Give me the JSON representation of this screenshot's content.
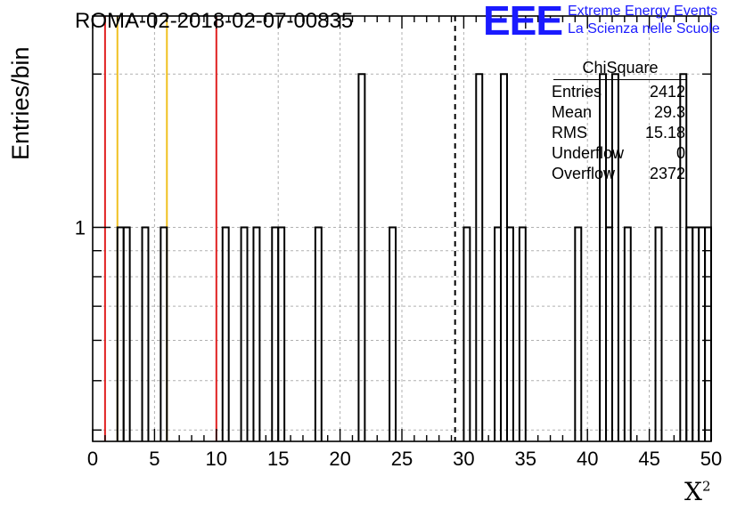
{
  "chart_data": {
    "type": "histogram",
    "title": "ROMA-02-2018-02-07-00835",
    "xlabel": "X",
    "xlabel_superscript": "2",
    "ylabel": "Entries/bin",
    "xlim": [
      0,
      50
    ],
    "ylim": [
      0.38,
      2.6
    ],
    "y_scale": "log",
    "grid": true,
    "x_ticks": [
      "0",
      "5",
      "10",
      "15",
      "20",
      "25",
      "30",
      "35",
      "40",
      "45",
      "50"
    ],
    "y_tick_label": "1",
    "bin_width": 0.5,
    "bins": [
      {
        "x": 2.0,
        "y": 1
      },
      {
        "x": 2.5,
        "y": 1
      },
      {
        "x": 4.0,
        "y": 1
      },
      {
        "x": 5.5,
        "y": 1
      },
      {
        "x": 10.5,
        "y": 1
      },
      {
        "x": 12.0,
        "y": 1
      },
      {
        "x": 13.0,
        "y": 1
      },
      {
        "x": 14.5,
        "y": 1
      },
      {
        "x": 15.0,
        "y": 1
      },
      {
        "x": 18.0,
        "y": 1
      },
      {
        "x": 21.5,
        "y": 2
      },
      {
        "x": 24.0,
        "y": 1
      },
      {
        "x": 30.0,
        "y": 1
      },
      {
        "x": 31.0,
        "y": 2
      },
      {
        "x": 32.5,
        "y": 1
      },
      {
        "x": 33.0,
        "y": 2
      },
      {
        "x": 33.5,
        "y": 1
      },
      {
        "x": 34.5,
        "y": 1
      },
      {
        "x": 39.0,
        "y": 1
      },
      {
        "x": 41.0,
        "y": 2
      },
      {
        "x": 41.5,
        "y": 1
      },
      {
        "x": 42.0,
        "y": 2
      },
      {
        "x": 43.0,
        "y": 1
      },
      {
        "x": 45.5,
        "y": 1
      },
      {
        "x": 47.5,
        "y": 2
      },
      {
        "x": 48.0,
        "y": 1
      },
      {
        "x": 48.5,
        "y": 1
      },
      {
        "x": 49.0,
        "y": 1
      },
      {
        "x": 49.5,
        "y": 1
      }
    ],
    "reference_lines": [
      {
        "x": 1.0,
        "color": "#e02020",
        "style": "solid"
      },
      {
        "x": 2.0,
        "color": "#f0c020",
        "style": "solid"
      },
      {
        "x": 6.0,
        "color": "#f0c020",
        "style": "solid"
      },
      {
        "x": 10.0,
        "color": "#e02020",
        "style": "solid"
      },
      {
        "x": 29.3,
        "color": "#000000",
        "style": "dashed"
      }
    ],
    "stats_box": {
      "title": "ChiSquare",
      "rows": [
        {
          "label": "Entries",
          "value": "2412"
        },
        {
          "label": "Mean",
          "value": "29.3"
        },
        {
          "label": "RMS",
          "value": "15.18"
        },
        {
          "label": "Underflow",
          "value": "0"
        },
        {
          "label": "Overflow",
          "value": "2372"
        }
      ]
    }
  },
  "logo": {
    "mark": "EEE",
    "line1": "Extreme Energy Events",
    "line2": "La Scienza nelle Scuole",
    "color": "#1a1aff"
  }
}
